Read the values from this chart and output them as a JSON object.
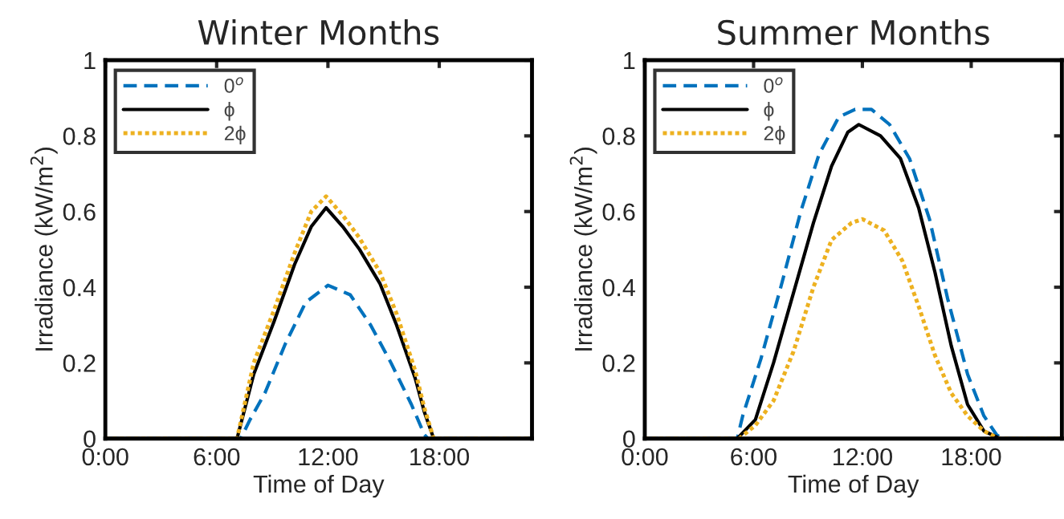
{
  "chart_data": [
    {
      "type": "line",
      "title": "Winter Months",
      "xlabel": "Time of Day",
      "ylabel": "Irradiance (kW/m$^{2}$)",
      "xlim": [
        0,
        23
      ],
      "ylim": [
        0,
        1
      ],
      "xticks": [
        {
          "value": 0,
          "label": "0:00"
        },
        {
          "value": 6,
          "label": "6:00"
        },
        {
          "value": 12,
          "label": "12:00"
        },
        {
          "value": 18,
          "label": "18:00"
        }
      ],
      "yticks": [
        0,
        0.2,
        0.4,
        0.6,
        0.8,
        1
      ],
      "grid": false,
      "legend": "top left",
      "series": [
        {
          "name": "0$^{o}$",
          "color": "#0072bd",
          "line_style": "dashed",
          "x": [
            0,
            7.3,
            7.8,
            8.6,
            9.7,
            10.8,
            12.0,
            13.2,
            14.3,
            15.4,
            16.5,
            17.2,
            17.4,
            23
          ],
          "values": [
            0,
            0,
            0.05,
            0.12,
            0.25,
            0.36,
            0.405,
            0.38,
            0.3,
            0.2,
            0.09,
            0.01,
            0,
            0
          ]
        },
        {
          "name": "ϕ",
          "color": "#000000",
          "line_style": "solid",
          "x": [
            0,
            7.1,
            8.0,
            9.1,
            10.2,
            11.1,
            11.9,
            12.8,
            13.7,
            14.8,
            15.7,
            16.7,
            17.2,
            17.7,
            23
          ],
          "values": [
            0,
            0,
            0.17,
            0.31,
            0.46,
            0.56,
            0.61,
            0.56,
            0.5,
            0.41,
            0.3,
            0.16,
            0.07,
            0,
            0
          ]
        },
        {
          "name": "2ϕ",
          "color": "#edb120",
          "line_style": "dotted",
          "x": [
            0,
            7.1,
            8.0,
            9.1,
            10.2,
            11.1,
            11.9,
            12.8,
            13.7,
            14.8,
            15.7,
            16.7,
            17.2,
            17.7,
            23
          ],
          "values": [
            0,
            0,
            0.2,
            0.34,
            0.49,
            0.6,
            0.64,
            0.59,
            0.53,
            0.44,
            0.33,
            0.18,
            0.08,
            0,
            0
          ]
        }
      ]
    },
    {
      "type": "line",
      "title": "Summer Months",
      "xlabel": "Time of Day",
      "ylabel": "Irradiance (kW/m$^{2}$)",
      "xlim": [
        0,
        23
      ],
      "ylim": [
        0,
        1
      ],
      "xticks": [
        {
          "value": 0,
          "label": "0:00"
        },
        {
          "value": 6,
          "label": "6:00"
        },
        {
          "value": 12,
          "label": "12:00"
        },
        {
          "value": 18,
          "label": "18:00"
        }
      ],
      "yticks": [
        0,
        0.2,
        0.4,
        0.6,
        0.8,
        1
      ],
      "grid": false,
      "legend": "top left",
      "series": [
        {
          "name": "0$^{o}$",
          "color": "#0072bd",
          "line_style": "dashed",
          "x": [
            0,
            5.1,
            5.4,
            6.4,
            7.5,
            8.6,
            9.6,
            10.7,
            11.6,
            12.5,
            13.5,
            14.6,
            15.7,
            16.7,
            17.8,
            18.7,
            19.4,
            19.7,
            23
          ],
          "values": [
            0,
            0,
            0.06,
            0.21,
            0.4,
            0.6,
            0.75,
            0.85,
            0.87,
            0.87,
            0.83,
            0.74,
            0.58,
            0.37,
            0.17,
            0.06,
            0.01,
            0,
            0
          ]
        },
        {
          "name": "ϕ",
          "color": "#000000",
          "line_style": "solid",
          "x": [
            0,
            5.1,
            6.1,
            7.1,
            8.2,
            9.3,
            10.3,
            11.2,
            11.8,
            13.0,
            14.1,
            15.1,
            16.0,
            16.9,
            17.8,
            18.7,
            19.6,
            23
          ],
          "values": [
            0,
            0,
            0.05,
            0.2,
            0.385,
            0.57,
            0.72,
            0.81,
            0.83,
            0.8,
            0.74,
            0.61,
            0.44,
            0.245,
            0.09,
            0.02,
            0,
            0
          ]
        },
        {
          "name": "2ϕ",
          "color": "#edb120",
          "line_style": "dotted",
          "x": [
            0,
            5.2,
            6.1,
            7.1,
            8.2,
            9.3,
            10.3,
            11.4,
            12.0,
            13.2,
            14.2,
            15.1,
            16.0,
            16.9,
            17.8,
            18.7,
            19.5,
            23
          ],
          "values": [
            0,
            0,
            0.035,
            0.1,
            0.23,
            0.4,
            0.525,
            0.57,
            0.58,
            0.55,
            0.47,
            0.35,
            0.22,
            0.12,
            0.06,
            0.02,
            0,
            0
          ]
        }
      ]
    }
  ]
}
